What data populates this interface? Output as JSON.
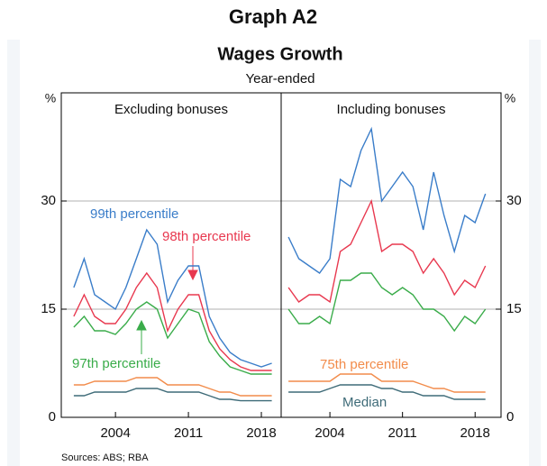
{
  "header": {
    "title": "Graph A2",
    "subtitle": "Wages Growth",
    "note": "Year-ended",
    "y_unit": "%",
    "source": "Sources:   ABS; RBA"
  },
  "chart_data": [
    {
      "type": "line",
      "title": "Excluding bonuses",
      "x": [
        2000,
        2001,
        2002,
        2003,
        2004,
        2005,
        2006,
        2007,
        2008,
        2009,
        2010,
        2011,
        2012,
        2013,
        2014,
        2015,
        2016,
        2017,
        2018,
        2019
      ],
      "xlim": [
        1998.8,
        2019.9
      ],
      "xticks": [
        2004,
        2011,
        2018
      ],
      "ylim": [
        0,
        45
      ],
      "yticks": [
        0,
        15,
        30
      ],
      "grid": true,
      "series": [
        {
          "name": "99th percentile",
          "color": "#3a7dc9",
          "values": [
            18,
            22,
            17,
            16,
            15,
            18,
            22,
            26,
            24,
            16,
            19,
            21,
            21,
            14,
            11,
            9,
            8,
            7.5,
            7,
            7.5
          ]
        },
        {
          "name": "98th percentile",
          "color": "#e8384f",
          "values": [
            14,
            17,
            14,
            13,
            13,
            15,
            18,
            20,
            18,
            12,
            15,
            17,
            17,
            12,
            9.5,
            8,
            7,
            6.5,
            6.5,
            6.5
          ]
        },
        {
          "name": "97th percentile",
          "color": "#3aac4a",
          "values": [
            12.5,
            14,
            12,
            12,
            11.5,
            13,
            15,
            16,
            15,
            11,
            13,
            15,
            14.5,
            10.5,
            8.5,
            7,
            6.5,
            6,
            6,
            6
          ]
        },
        {
          "color": "#f28c4b",
          "values": [
            4.5,
            4.5,
            5,
            5,
            5,
            5,
            5.5,
            5.5,
            5.5,
            4.5,
            4.5,
            4.5,
            4.5,
            4,
            3.5,
            3.5,
            3,
            3,
            3,
            3
          ]
        },
        {
          "color": "#3e6b78",
          "values": [
            3,
            3,
            3.5,
            3.5,
            3.5,
            3.5,
            4,
            4,
            4,
            3.5,
            3.5,
            3.5,
            3.5,
            3,
            2.5,
            2.5,
            2.3,
            2.3,
            2.3,
            2.3
          ]
        }
      ]
    },
    {
      "type": "line",
      "title": "Including bonuses",
      "x": [
        2000,
        2001,
        2002,
        2003,
        2004,
        2005,
        2006,
        2007,
        2008,
        2009,
        2010,
        2011,
        2012,
        2013,
        2014,
        2015,
        2016,
        2017,
        2018,
        2019
      ],
      "xlim": [
        1999.3,
        2020.5
      ],
      "xticks": [
        2004,
        2011,
        2018
      ],
      "ylim": [
        0,
        45
      ],
      "yticks": [
        0,
        15,
        30
      ],
      "grid": true,
      "series": [
        {
          "color": "#3a7dc9",
          "values": [
            25,
            22,
            21,
            20,
            22,
            33,
            32,
            37,
            40,
            30,
            32,
            34,
            32,
            26,
            34,
            28,
            23,
            28,
            27,
            31
          ]
        },
        {
          "color": "#e8384f",
          "values": [
            18,
            16,
            17,
            17,
            16,
            23,
            24,
            27,
            30,
            23,
            24,
            24,
            23,
            20,
            22,
            20,
            17,
            19,
            18,
            21
          ]
        },
        {
          "color": "#3aac4a",
          "values": [
            15,
            13,
            13,
            14,
            13,
            19,
            19,
            20,
            20,
            18,
            17,
            18,
            17,
            15,
            15,
            14,
            12,
            14,
            13,
            15
          ]
        },
        {
          "name": "75th percentile",
          "color": "#f28c4b",
          "values": [
            5,
            5,
            5,
            5,
            5,
            6,
            6,
            6,
            6,
            5,
            5,
            5,
            5,
            4.5,
            4,
            4,
            3.5,
            3.5,
            3.5,
            3.5
          ]
        },
        {
          "name": "Median",
          "color": "#3e6b78",
          "values": [
            3.5,
            3.5,
            3.5,
            3.5,
            4,
            4.5,
            4.5,
            4.5,
            4.5,
            4,
            4,
            3.5,
            3.5,
            3,
            3,
            3,
            2.5,
            2.5,
            2.5,
            2.5
          ]
        }
      ]
    }
  ]
}
